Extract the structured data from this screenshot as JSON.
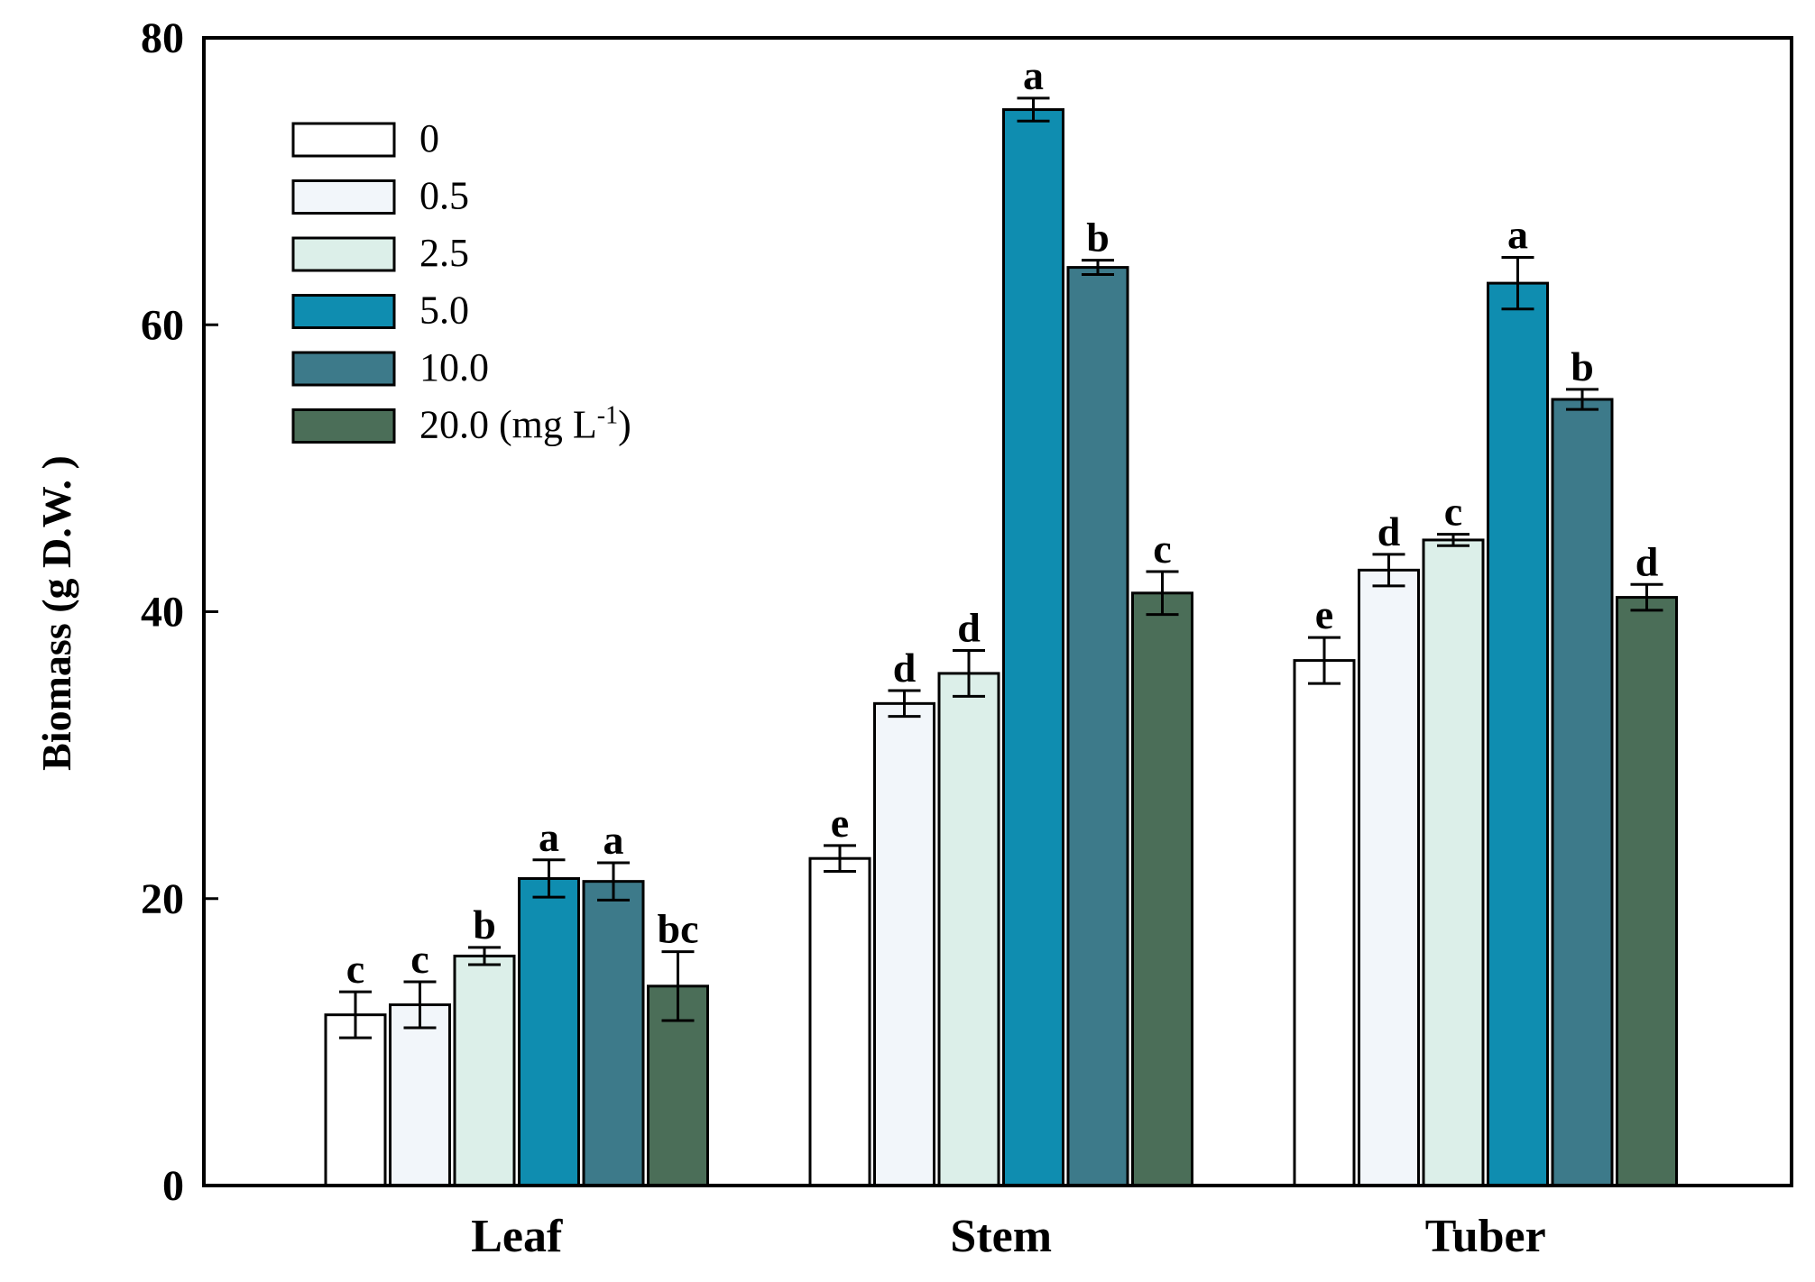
{
  "chart_data": {
    "type": "bar",
    "title": "",
    "xlabel": "",
    "ylabel": "Biomass (g D.W. )",
    "ylim": [
      0,
      80
    ],
    "yticks": [
      0,
      20,
      40,
      60,
      80
    ],
    "grid": false,
    "legend_position": "top-left",
    "legend_unit_base": " (mg L",
    "legend_unit_sup": "-1",
    "legend_unit_close": ")",
    "categories": [
      "Leaf",
      "Stem",
      "Tuber"
    ],
    "series": [
      {
        "name": "0",
        "color": "#ffffff",
        "values": [
          11.9,
          22.8,
          36.6
        ],
        "errors": [
          1.6,
          0.9,
          1.6
        ],
        "labels": [
          "c",
          "e",
          "e"
        ]
      },
      {
        "name": "0.5",
        "color": "#f2f6fa",
        "values": [
          12.6,
          33.6,
          42.9
        ],
        "errors": [
          1.6,
          0.9,
          1.1
        ],
        "labels": [
          "c",
          "d",
          "d"
        ]
      },
      {
        "name": "2.5",
        "color": "#dcefe9",
        "values": [
          16.0,
          35.7,
          45.0
        ],
        "errors": [
          0.6,
          1.6,
          0.4
        ],
        "labels": [
          "b",
          "d",
          "c"
        ]
      },
      {
        "name": "5.0",
        "color": "#0f8db0",
        "values": [
          21.4,
          75.0,
          62.9
        ],
        "errors": [
          1.3,
          0.8,
          1.8
        ],
        "labels": [
          "a",
          "a",
          "a"
        ]
      },
      {
        "name": "10.0",
        "color": "#3d7a8a",
        "values": [
          21.2,
          64.0,
          54.8
        ],
        "errors": [
          1.3,
          0.5,
          0.7
        ],
        "labels": [
          "a",
          "b",
          "b"
        ]
      },
      {
        "name": "20.0",
        "color": "#4b6e58",
        "values": [
          13.9,
          41.3,
          41.0
        ],
        "errors": [
          2.4,
          1.5,
          0.9
        ],
        "labels": [
          "bc",
          "c",
          "d"
        ]
      }
    ]
  }
}
